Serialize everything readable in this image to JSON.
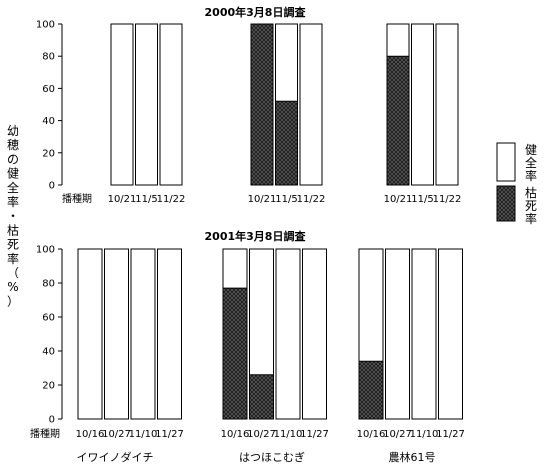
{
  "ylabel": "幼穂の健全率・枯死率（%）",
  "legend": {
    "healthy": "健全率",
    "dead": "枯死率"
  },
  "cultivars": [
    "イワイノダイチ",
    "はつほこむぎ",
    "農林61号"
  ],
  "chart_data": [
    {
      "type": "bar",
      "stacked": true,
      "title": "2000年3月8日調査",
      "xlabel": "播種期",
      "ylim": [
        0,
        100
      ],
      "yticks": [
        0,
        20,
        40,
        60,
        80,
        100
      ],
      "groups": [
        {
          "categories": [
            "10/21",
            "11/5",
            "11/22"
          ],
          "dead": [
            0,
            0,
            0
          ],
          "healthy": [
            100,
            100,
            100
          ]
        },
        {
          "categories": [
            "10/21",
            "11/5",
            "11/22"
          ],
          "dead": [
            100,
            52,
            0
          ],
          "healthy": [
            0,
            48,
            100
          ]
        },
        {
          "categories": [
            "10/21",
            "11/5",
            "11/22"
          ],
          "dead": [
            80,
            0,
            0
          ],
          "healthy": [
            20,
            100,
            100
          ]
        }
      ]
    },
    {
      "type": "bar",
      "stacked": true,
      "title": "2001年3月8日調査",
      "xlabel": "播種期",
      "ylim": [
        0,
        100
      ],
      "yticks": [
        0,
        20,
        40,
        60,
        80,
        100
      ],
      "groups": [
        {
          "categories": [
            "10/16",
            "10/27",
            "11/10",
            "11/27"
          ],
          "dead": [
            0,
            0,
            0,
            0
          ],
          "healthy": [
            100,
            100,
            100,
            100
          ]
        },
        {
          "categories": [
            "10/16",
            "10/27",
            "11/10",
            "11/27"
          ],
          "dead": [
            77,
            26,
            0,
            0
          ],
          "healthy": [
            23,
            74,
            100,
            100
          ]
        },
        {
          "categories": [
            "10/16",
            "10/27",
            "11/10",
            "11/27"
          ],
          "dead": [
            34,
            0,
            0,
            0
          ],
          "healthy": [
            66,
            100,
            100,
            100
          ]
        }
      ]
    }
  ]
}
